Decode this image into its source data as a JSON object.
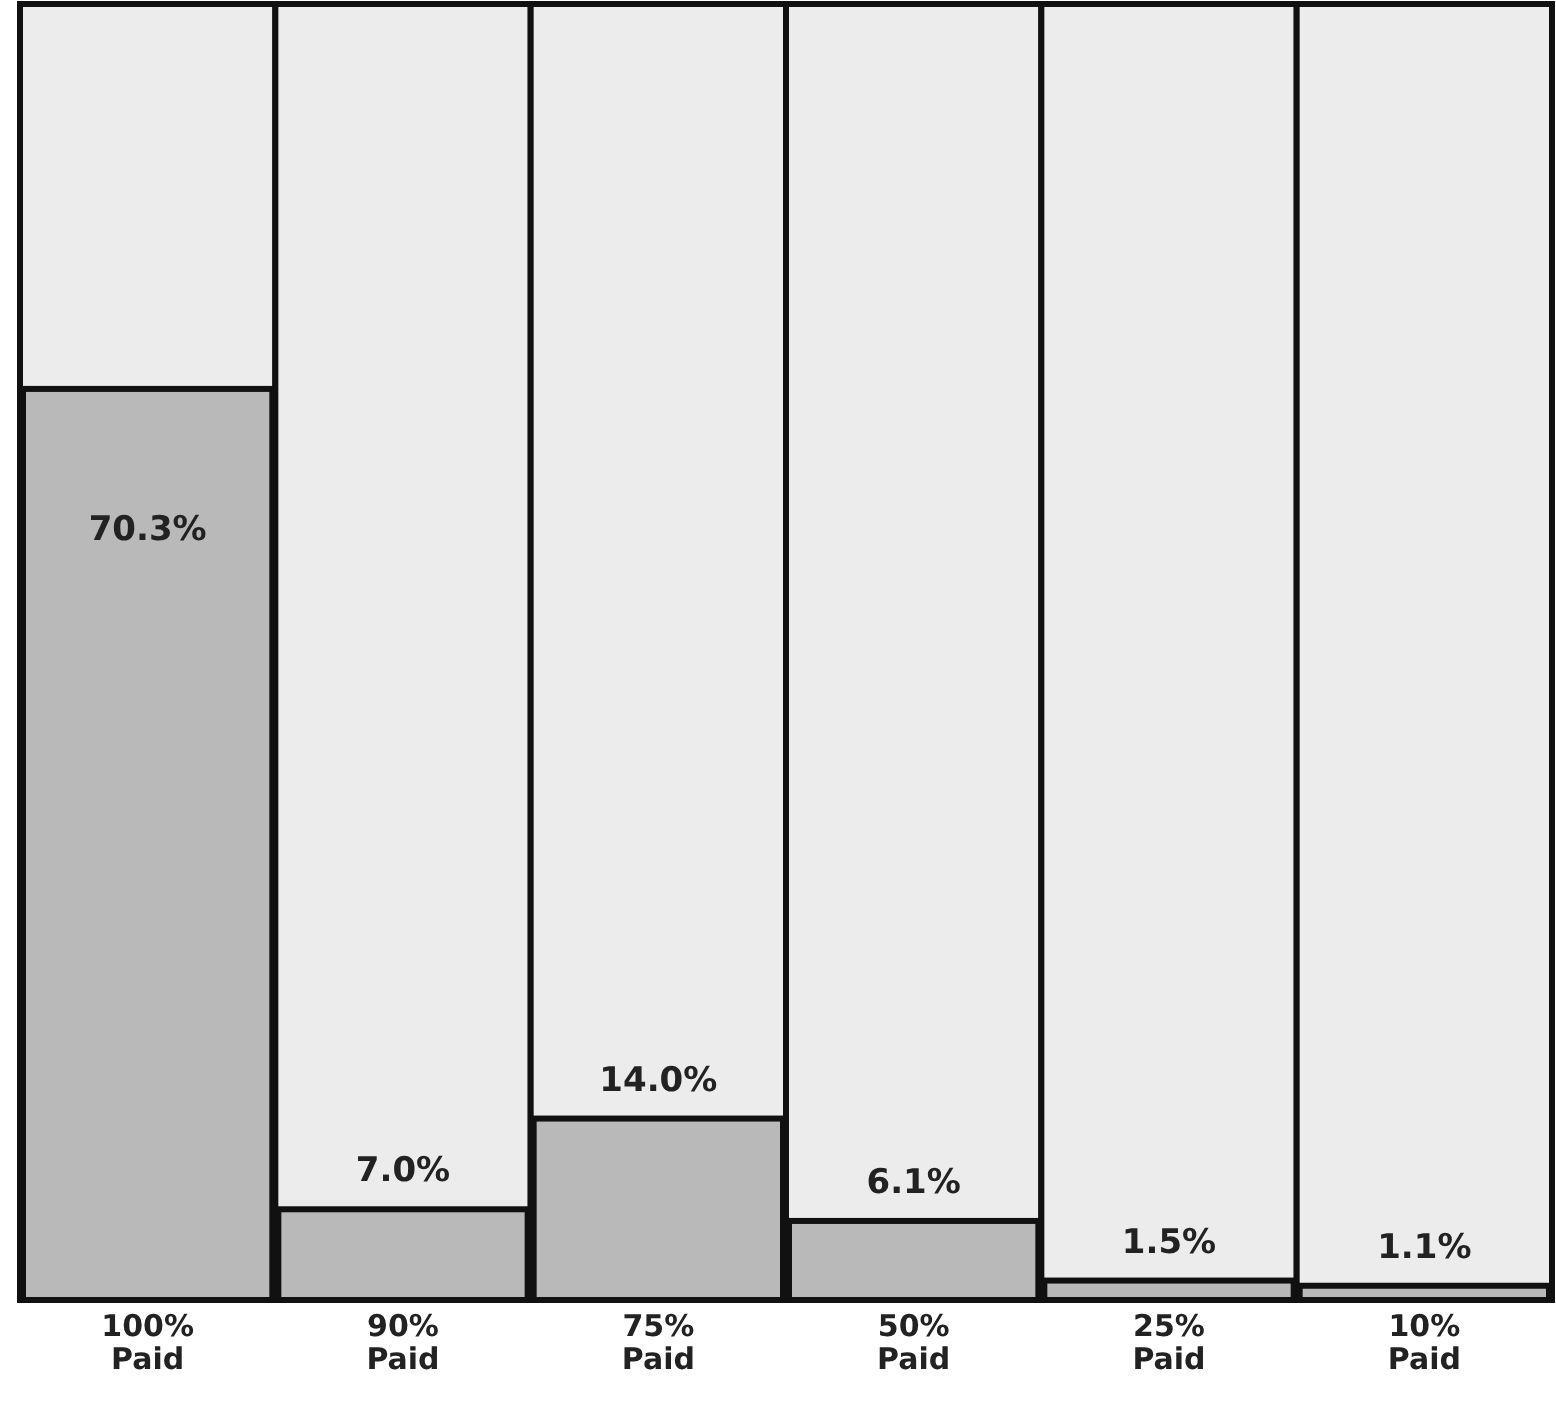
{
  "chart_data": {
    "type": "bar",
    "categories": [
      "100% Paid",
      "90% Paid",
      "75% Paid",
      "50% Paid",
      "25% Paid",
      "10% Paid"
    ],
    "values": [
      70.3,
      7.0,
      14.0,
      6.1,
      1.5,
      1.1
    ],
    "value_labels": [
      "70.3%",
      "7.0%",
      "14.0%",
      "6.1%",
      "1.5%",
      "1.1%"
    ],
    "color": "#b9b9b9",
    "ylim": [
      0,
      100
    ],
    "tick_labels": "x"
  }
}
